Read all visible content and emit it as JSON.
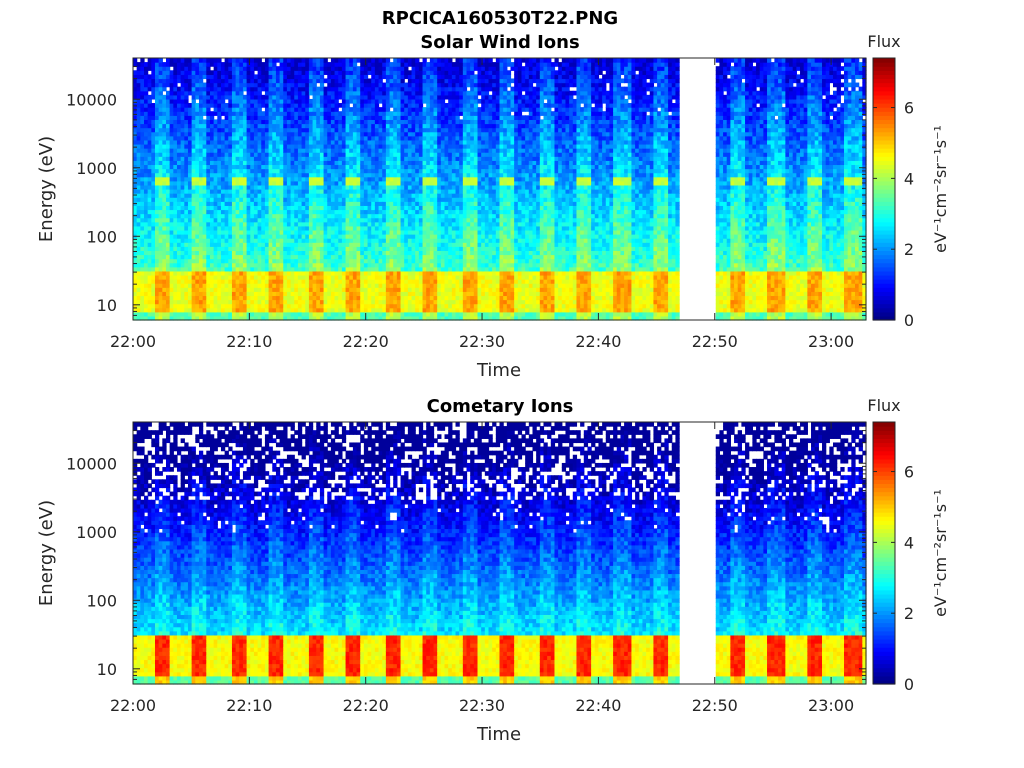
{
  "figure_title": "RPCICA160530T22.PNG",
  "chart_data": [
    {
      "type": "heatmap",
      "title": "Solar Wind Ions",
      "xlabel": "Time",
      "ylabel": "Energy (eV)",
      "x_ticks": [
        "22:00",
        "22:10",
        "22:20",
        "22:30",
        "22:40",
        "22:50",
        "23:00"
      ],
      "x_range": [
        "22:00",
        "23:03"
      ],
      "y_scale": "log",
      "y_ticks": [
        "10",
        "100",
        "1000",
        "10000"
      ],
      "y_range": [
        6,
        40000
      ],
      "data_gap": [
        "22:47",
        "22:50"
      ],
      "colorbar": {
        "title": "Flux",
        "label": "eV⁻¹cm⁻²sr⁻¹s⁻¹",
        "ticks": [
          "0",
          "2",
          "4",
          "6"
        ],
        "range": [
          0,
          7.4
        ],
        "colormap": "jet"
      },
      "features": {
        "low_energy_peak_eV": [
          10,
          30
        ],
        "beam_energy_eV": 650,
        "beam_level": 4.2
      }
    },
    {
      "type": "heatmap",
      "title": "Cometary Ions",
      "xlabel": "Time",
      "ylabel": "Energy (eV)",
      "x_ticks": [
        "22:00",
        "22:10",
        "22:20",
        "22:30",
        "22:40",
        "22:50",
        "23:00"
      ],
      "x_range": [
        "22:00",
        "23:03"
      ],
      "y_scale": "log",
      "y_ticks": [
        "10",
        "100",
        "1000",
        "10000"
      ],
      "y_range": [
        6,
        40000
      ],
      "data_gap": [
        "22:47",
        "22:50"
      ],
      "colorbar": {
        "title": "Flux",
        "label": "eV⁻¹cm⁻²sr⁻¹s⁻¹",
        "ticks": [
          "0",
          "2",
          "4",
          "6"
        ],
        "range": [
          0,
          7.4
        ],
        "colormap": "jet"
      },
      "features": {
        "low_energy_peak_eV": [
          10,
          30
        ],
        "low_energy_peak_level": 6,
        "sparse_above_eV": 3000
      }
    }
  ]
}
